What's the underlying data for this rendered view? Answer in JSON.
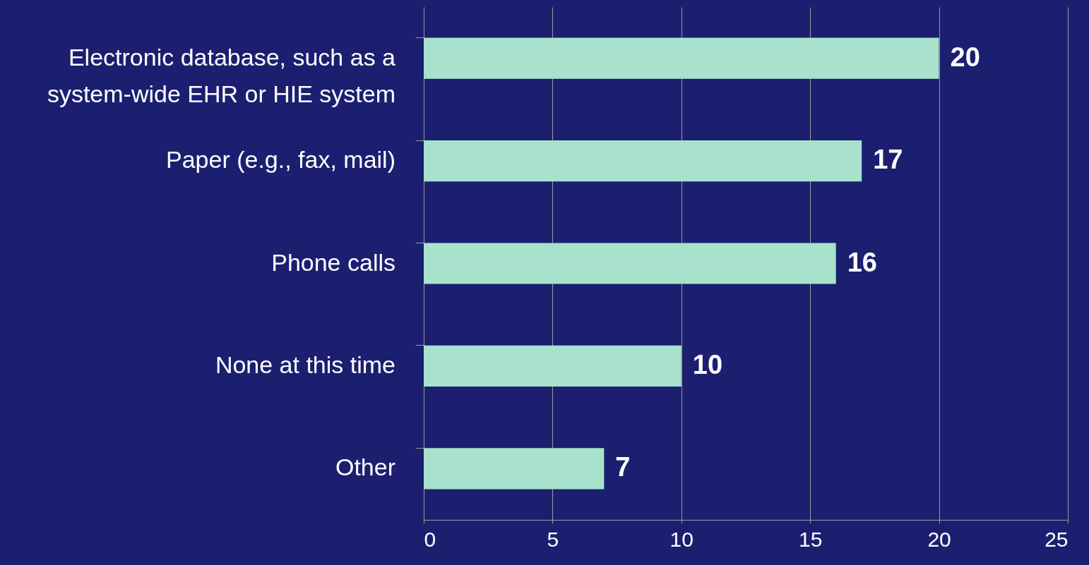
{
  "chart_data": {
    "type": "bar",
    "orientation": "horizontal",
    "categories": [
      "Electronic database, such as a system-wide EHR or HIE system",
      "Paper (e.g., fax, mail)",
      "Phone calls",
      "None at this time",
      "Other"
    ],
    "values": [
      20,
      17,
      16,
      10,
      7
    ],
    "color": "#a8e2cc",
    "xlim": [
      0,
      25
    ],
    "xticks": [
      0,
      5,
      10,
      15,
      20,
      25
    ],
    "grid": "x",
    "data_labels": true
  }
}
